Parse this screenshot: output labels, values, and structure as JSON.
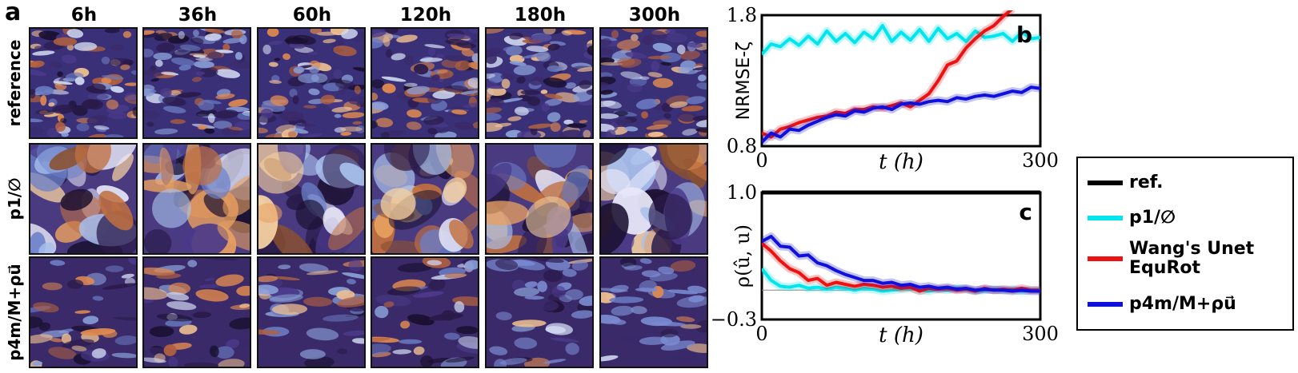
{
  "panel_a": {
    "letter": "a",
    "columns": [
      "6h",
      "36h",
      "60h",
      "120h",
      "180h",
      "300h"
    ],
    "rows": [
      "reference",
      "p1/∅",
      "p4m/M+ρu⃗"
    ]
  },
  "legend": {
    "items": [
      {
        "label": "ref.",
        "color": "#000000"
      },
      {
        "label": "p1/∅",
        "color": "#00e5ee"
      },
      {
        "label": "Wang's Unet EquRot",
        "color": "#ee1111"
      },
      {
        "label": "p4m/M+ρu⃗",
        "color": "#1010dd"
      }
    ]
  },
  "chart_data": [
    {
      "type": "line",
      "panel": "b",
      "ylabel": "NRMSE-ζ",
      "xlabel": "t (h)",
      "xlim": [
        0,
        300
      ],
      "ylim": [
        0.8,
        1.8
      ],
      "xticks": [
        "0",
        "300"
      ],
      "yticks": [
        "0.8",
        "1.8"
      ],
      "series": [
        {
          "name": "p1/∅",
          "color": "#00e5ee",
          "x": [
            0,
            10,
            20,
            30,
            40,
            50,
            60,
            70,
            80,
            90,
            100,
            110,
            120,
            130,
            140,
            150,
            160,
            170,
            180,
            190,
            200,
            210,
            220,
            230,
            240,
            250,
            260,
            270,
            280,
            290,
            300
          ],
          "y": [
            1.5,
            1.58,
            1.56,
            1.62,
            1.57,
            1.64,
            1.58,
            1.68,
            1.6,
            1.66,
            1.59,
            1.67,
            1.62,
            1.72,
            1.6,
            1.67,
            1.61,
            1.69,
            1.6,
            1.7,
            1.62,
            1.66,
            1.6,
            1.68,
            1.63,
            1.64,
            1.66,
            1.6,
            1.67,
            1.62,
            1.63
          ]
        },
        {
          "name": "Wang's Unet EquRot",
          "color": "#ee1111",
          "x": [
            0,
            10,
            20,
            30,
            40,
            50,
            60,
            70,
            80,
            90,
            100,
            110,
            120,
            130,
            140,
            150,
            160,
            170,
            180,
            190,
            200,
            210,
            220,
            230,
            240,
            250,
            260,
            270
          ],
          "y": [
            0.9,
            0.87,
            0.93,
            0.95,
            0.98,
            1.0,
            1.02,
            1.03,
            1.06,
            1.05,
            1.08,
            1.08,
            1.1,
            1.09,
            1.11,
            1.13,
            1.1,
            1.15,
            1.2,
            1.3,
            1.42,
            1.45,
            1.55,
            1.62,
            1.68,
            1.72,
            1.79,
            1.85
          ]
        },
        {
          "name": "p4m/M+ρu⃗",
          "color": "#1010dd",
          "x": [
            0,
            10,
            20,
            30,
            40,
            50,
            60,
            70,
            80,
            90,
            100,
            110,
            120,
            130,
            140,
            150,
            160,
            170,
            180,
            190,
            200,
            210,
            220,
            230,
            240,
            250,
            260,
            270,
            280,
            290,
            300
          ],
          "y": [
            0.83,
            0.9,
            0.87,
            0.93,
            0.92,
            0.96,
            0.99,
            1.02,
            1.04,
            1.03,
            1.07,
            1.06,
            1.09,
            1.1,
            1.08,
            1.12,
            1.13,
            1.12,
            1.14,
            1.15,
            1.14,
            1.17,
            1.16,
            1.18,
            1.19,
            1.18,
            1.2,
            1.22,
            1.21,
            1.25,
            1.24
          ]
        }
      ]
    },
    {
      "type": "line",
      "panel": "c",
      "ylabel": "ρ(û, u)",
      "xlabel": "t (h)",
      "xlim": [
        0,
        300
      ],
      "ylim": [
        -0.3,
        1.0
      ],
      "xticks": [
        "0",
        "300"
      ],
      "yticks": [
        "−0.3",
        "1.0"
      ],
      "series": [
        {
          "name": "ref.",
          "color": "#000000",
          "x": [
            0,
            300
          ],
          "y": [
            1.0,
            1.0
          ]
        },
        {
          "name": "p1/∅",
          "color": "#00e5ee",
          "x": [
            0,
            10,
            20,
            30,
            40,
            50,
            60,
            70,
            80,
            90,
            100,
            110,
            120,
            130,
            140,
            150,
            160,
            170,
            180,
            190,
            200,
            210,
            220,
            230,
            240,
            250,
            260,
            270,
            280,
            290,
            300
          ],
          "y": [
            0.22,
            0.1,
            0.04,
            0.03,
            0.05,
            0.02,
            0.03,
            0.01,
            0.03,
            0.02,
            0.0,
            0.02,
            0.01,
            -0.01,
            0.0,
            0.01,
            0.02,
            0.0,
            -0.01,
            0.01,
            0.0,
            0.02,
            0.01,
            -0.01,
            0.0,
            0.01,
            0.0,
            0.01,
            -0.01,
            0.0,
            0.0
          ]
        },
        {
          "name": "Wang's Unet EquRot",
          "color": "#ee1111",
          "x": [
            0,
            10,
            20,
            30,
            40,
            50,
            60,
            70,
            80,
            90,
            100,
            110,
            120,
            130,
            140,
            150,
            160,
            170,
            180,
            190,
            200,
            210,
            220,
            230,
            240,
            250,
            260,
            270,
            280,
            290,
            300
          ],
          "y": [
            0.48,
            0.4,
            0.3,
            0.22,
            0.18,
            0.1,
            0.12,
            0.05,
            0.08,
            0.06,
            0.04,
            0.06,
            0.05,
            0.03,
            0.04,
            0.02,
            0.03,
            -0.01,
            0.02,
            0.01,
            0.02,
            0.0,
            0.01,
            -0.01,
            0.02,
            0.0,
            0.01,
            0.0,
            0.02,
            0.0,
            0.0
          ]
        },
        {
          "name": "p4m/M+ρu⃗",
          "color": "#1010dd",
          "x": [
            0,
            10,
            20,
            30,
            40,
            50,
            60,
            70,
            80,
            90,
            100,
            110,
            120,
            130,
            140,
            150,
            160,
            170,
            180,
            190,
            200,
            210,
            220,
            230,
            240,
            250,
            260,
            270,
            280,
            290,
            300
          ],
          "y": [
            0.5,
            0.55,
            0.45,
            0.44,
            0.35,
            0.36,
            0.28,
            0.25,
            0.2,
            0.16,
            0.13,
            0.1,
            0.1,
            0.07,
            0.08,
            0.05,
            0.06,
            0.03,
            0.04,
            0.02,
            0.03,
            0.01,
            0.02,
            0.0,
            0.01,
            0.0,
            0.0,
            -0.01,
            0.0,
            -0.01,
            -0.01
          ]
        }
      ]
    }
  ]
}
